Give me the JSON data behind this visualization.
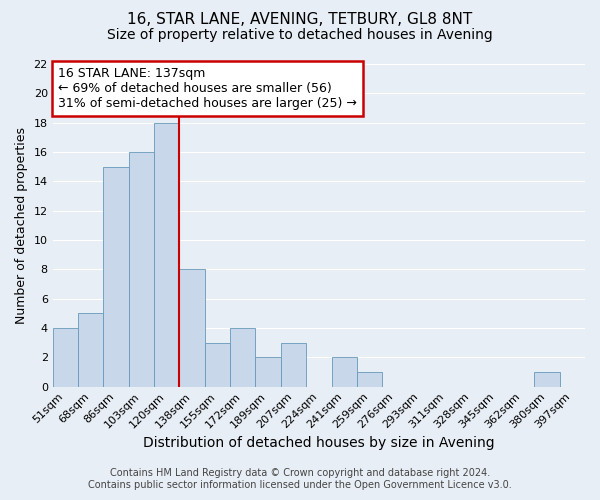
{
  "title": "16, STAR LANE, AVENING, TETBURY, GL8 8NT",
  "subtitle": "Size of property relative to detached houses in Avening",
  "xlabel": "Distribution of detached houses by size in Avening",
  "ylabel": "Number of detached properties",
  "bin_labels": [
    "51sqm",
    "68sqm",
    "86sqm",
    "103sqm",
    "120sqm",
    "138sqm",
    "155sqm",
    "172sqm",
    "189sqm",
    "207sqm",
    "224sqm",
    "241sqm",
    "259sqm",
    "276sqm",
    "293sqm",
    "311sqm",
    "328sqm",
    "345sqm",
    "362sqm",
    "380sqm",
    "397sqm"
  ],
  "bar_heights": [
    4,
    5,
    15,
    16,
    18,
    8,
    3,
    4,
    2,
    3,
    0,
    2,
    1,
    0,
    0,
    0,
    0,
    0,
    0,
    1,
    0
  ],
  "bar_color": "#c8d8ea",
  "bar_edgecolor": "#6699bb",
  "bg_color": "#e8eef5",
  "grid_color": "#ffffff",
  "vline_color": "#cc0000",
  "ylim": [
    0,
    22
  ],
  "yticks": [
    0,
    2,
    4,
    6,
    8,
    10,
    12,
    14,
    16,
    18,
    20,
    22
  ],
  "annotation_title": "16 STAR LANE: 137sqm",
  "annotation_line1": "← 69% of detached houses are smaller (56)",
  "annotation_line2": "31% of semi-detached houses are larger (25) →",
  "annotation_box_color": "#ffffff",
  "annotation_box_edgecolor": "#cc0000",
  "footer_line1": "Contains HM Land Registry data © Crown copyright and database right 2024.",
  "footer_line2": "Contains public sector information licensed under the Open Government Licence v3.0.",
  "title_fontsize": 11,
  "subtitle_fontsize": 10,
  "xlabel_fontsize": 10,
  "ylabel_fontsize": 9,
  "tick_fontsize": 8,
  "annotation_fontsize": 9,
  "footer_fontsize": 7
}
